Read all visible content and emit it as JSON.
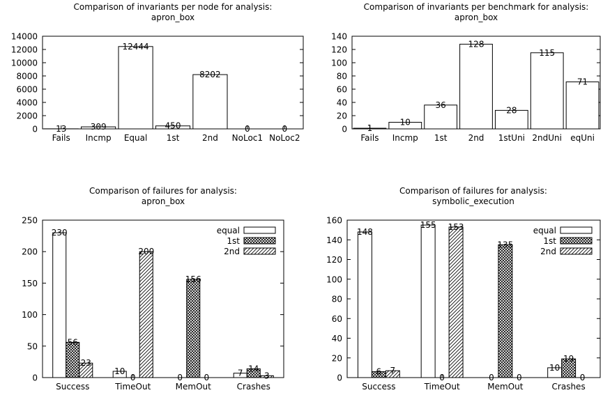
{
  "chart_data": [
    {
      "type": "bar",
      "title": "Comparison of invariants per node for analysis:",
      "subtitle": "apron_box",
      "categories": [
        "Fails",
        "Incmp",
        "Equal",
        "1st",
        "2nd",
        "NoLoc1",
        "NoLoc2"
      ],
      "values": [
        13,
        309,
        12444,
        450,
        8202,
        0,
        0
      ],
      "ylim": [
        0,
        14000
      ],
      "yticks": [
        0,
        2000,
        4000,
        6000,
        8000,
        10000,
        12000,
        14000
      ],
      "grid": false
    },
    {
      "type": "bar",
      "title": "Comparison of invariants per benchmark for analysis:",
      "subtitle": "apron_box",
      "categories": [
        "Fails",
        "Incmp",
        "1st",
        "2nd",
        "1stUni",
        "2ndUni",
        "eqUni"
      ],
      "values": [
        1,
        10,
        36,
        128,
        28,
        115,
        71
      ],
      "ylim": [
        0,
        140
      ],
      "yticks": [
        0,
        20,
        40,
        60,
        80,
        100,
        120,
        140
      ],
      "grid": false
    },
    {
      "type": "bar",
      "title": "Comparison of failures for analysis:",
      "subtitle": "apron_box",
      "categories": [
        "Success",
        "TimeOut",
        "MemOut",
        "Crashes"
      ],
      "series": [
        {
          "name": "equal",
          "values": [
            230,
            10,
            0,
            7
          ],
          "pattern": "empty"
        },
        {
          "name": "1st",
          "values": [
            56,
            0,
            156,
            14
          ],
          "pattern": "crosshatch"
        },
        {
          "name": "2nd",
          "values": [
            23,
            200,
            0,
            3
          ],
          "pattern": "diagonal"
        }
      ],
      "ylim": [
        0,
        250
      ],
      "yticks": [
        0,
        50,
        100,
        150,
        200,
        250
      ],
      "legend": "top-right",
      "grid": false
    },
    {
      "type": "bar",
      "title": "Comparison of failures for analysis:",
      "subtitle": "symbolic_execution",
      "categories": [
        "Success",
        "TimeOut",
        "MemOut",
        "Crashes"
      ],
      "series": [
        {
          "name": "equal",
          "values": [
            148,
            155,
            0,
            10
          ],
          "pattern": "empty"
        },
        {
          "name": "1st",
          "values": [
            6,
            0,
            135,
            19
          ],
          "pattern": "crosshatch"
        },
        {
          "name": "2nd",
          "values": [
            7,
            153,
            0,
            0
          ],
          "pattern": "diagonal"
        }
      ],
      "ylim": [
        0,
        160
      ],
      "yticks": [
        0,
        20,
        40,
        60,
        80,
        100,
        120,
        140,
        160
      ],
      "legend": "top-right",
      "grid": false
    }
  ]
}
